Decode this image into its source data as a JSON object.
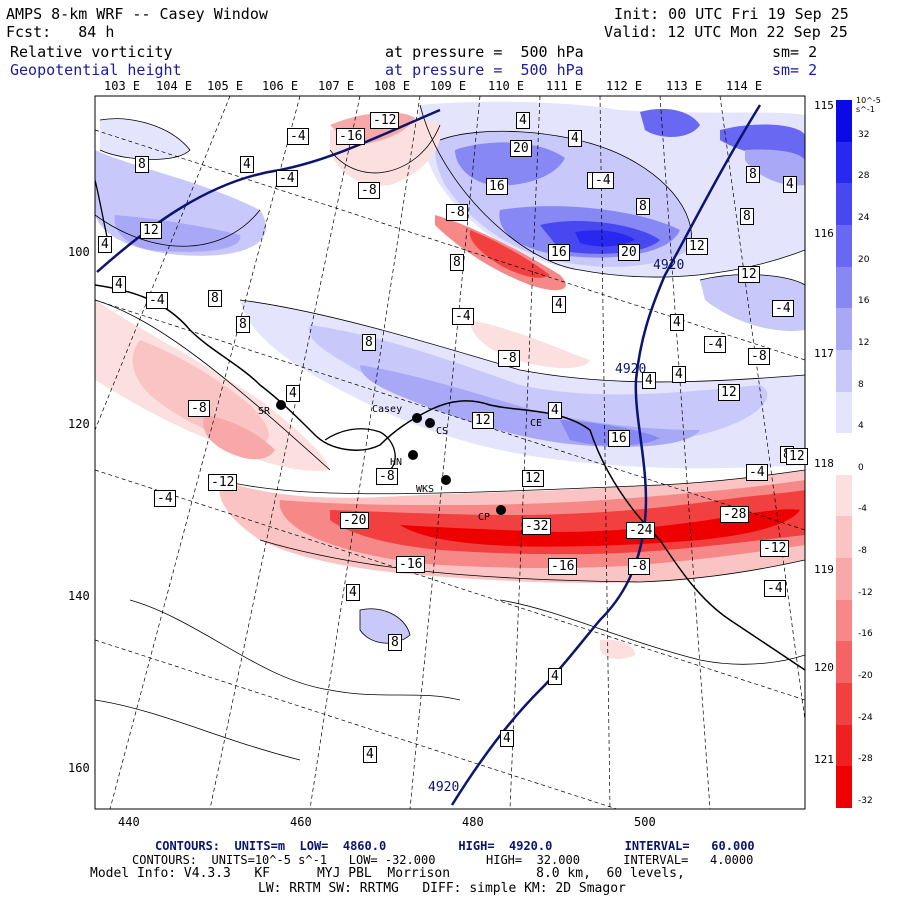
{
  "header": {
    "title": "AMPS 8-km WRF -- Casey Window",
    "init": "Init: 00 UTC Fri 19 Sep 25",
    "forecast": "Fcst:   84 h",
    "valid": "Valid: 12 UTC Mon 22 Sep 25",
    "field1_name": "Relative vorticity",
    "field1_level": "at pressure =  500 hPa",
    "field1_sm": "sm= 2",
    "field2_name": "Geopotential height",
    "field2_level": "at pressure =  500 hPa",
    "field2_sm": "sm= 2"
  },
  "map": {
    "lon_labels_top": [
      "103 E",
      "104 E",
      "105 E",
      "106 E",
      "107 E",
      "108 E",
      "109 E",
      "110 E",
      "111 E",
      "112 E",
      "113 E",
      "114 E"
    ],
    "lon_labels_right": [
      "115 E",
      "116 E",
      "117 E",
      "118 E",
      "119 E",
      "120 E",
      "121 E"
    ],
    "y_axis_ticks": [
      "100",
      "120",
      "140",
      "160"
    ],
    "x_axis_ticks": [
      "440",
      "460",
      "480",
      "500"
    ],
    "stations": [
      "SR",
      "Casey",
      "CS",
      "HN",
      "WKS",
      "CP",
      "CE"
    ],
    "contour_labels": [
      "-4",
      "-16",
      "-12",
      "4",
      "4",
      "8",
      "4",
      "-4",
      "-8",
      "20",
      "16",
      "-4",
      "8",
      "8",
      "4",
      "12",
      "-8",
      "8",
      "16",
      "20",
      "12",
      "4920",
      "-8",
      "8",
      "12",
      "-4",
      "8",
      "8",
      "-4",
      "4",
      "4",
      "8",
      "-8",
      "12",
      "-4",
      "4",
      "-8",
      "4920",
      "4",
      "4",
      "-4",
      "4",
      "12",
      "-8",
      "4",
      "12",
      "16",
      "4",
      "-8",
      "-4",
      "-12",
      "8",
      "12",
      "-4",
      "-20",
      "-32",
      "-24",
      "-28",
      "-16",
      "-16",
      "-12",
      "-8",
      "4",
      "-4",
      "8",
      "4",
      "4",
      "4",
      "4920"
    ]
  },
  "colorbar": {
    "unit_label": "10^-5 s^-1",
    "ticks": [
      "32",
      "28",
      "24",
      "20",
      "16",
      "12",
      "8",
      "4",
      "0",
      "-4",
      "-8",
      "-12",
      "-16",
      "-20",
      "-24",
      "-28",
      "-32"
    ],
    "colors": [
      "#0a0ae6",
      "#2828f0",
      "#4848f0",
      "#6868f2",
      "#8888f4",
      "#a8a8f6",
      "#c8c8fa",
      "#e4e4fc",
      "#ffffff",
      "#fce0e0",
      "#fac4c4",
      "#f8a8a8",
      "#f68888",
      "#f46464",
      "#f24040",
      "#f02020",
      "#ee0000"
    ]
  },
  "footer": {
    "line1": "CONTOURS:  UNITS=m  LOW=  4860.0          HIGH=  4920.0          INTERVAL=   60.000",
    "line2": "CONTOURS:  UNITS=10^-5 s^-1   LOW= -32.000       HIGH=  32.000      INTERVAL=   4.0000",
    "line3": "Model Info: V4.3.3   KF      MYJ PBL  Morrison           8.0 km,  60 levels,",
    "line4": "LW: RRTM SW: RRTMG   DIFF: simple KM: 2D Smagor"
  }
}
